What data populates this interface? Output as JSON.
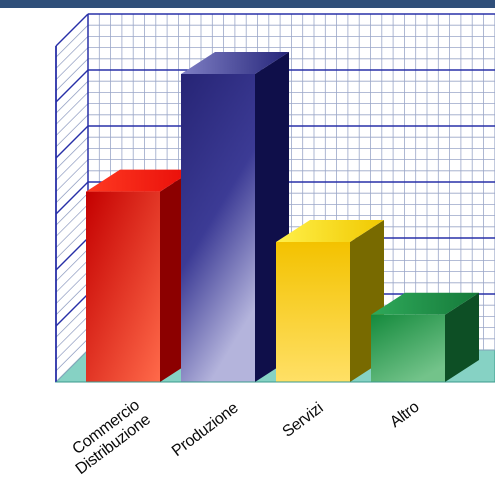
{
  "chart_data": {
    "type": "bar",
    "title": "",
    "xlabel": "",
    "ylabel": "",
    "categories": [
      "Commercio Distribuzione",
      "Produzione",
      "Servizi",
      "Altro"
    ],
    "category_label_lines": [
      [
        "Commercio",
        "Distribuzione"
      ],
      [
        "Produzione"
      ],
      [
        "Servizi"
      ],
      [
        "Altro"
      ]
    ],
    "values": [
      3.4,
      5.5,
      2.5,
      1.2
    ],
    "ylim": [
      0,
      6
    ],
    "grid": true,
    "legend": "none",
    "style": "3d",
    "colors": [
      "#e8120c",
      "#2b2a86",
      "#f4c000",
      "#1f8a45"
    ],
    "axis_color": "#2830a8",
    "grid_color": "#9aa6c8",
    "floor_color": "#86d2c4"
  }
}
